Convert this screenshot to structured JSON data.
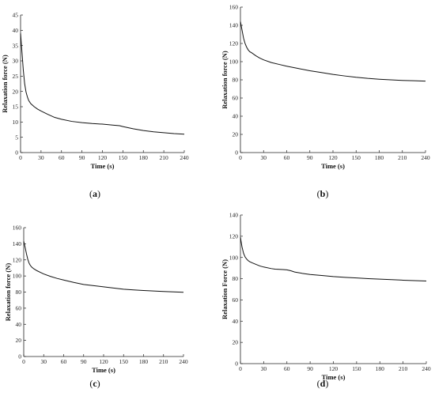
{
  "chart_data": [
    {
      "type": "line",
      "id": "a",
      "caption": "a",
      "xlabel": "Time (s)",
      "ylabel": "Relaxation force (N)",
      "xlim": [
        0,
        240
      ],
      "ylim": [
        0,
        45
      ],
      "xticks": [
        0,
        30,
        60,
        90,
        120,
        150,
        180,
        210,
        240
      ],
      "yticks": [
        0,
        5,
        10,
        15,
        20,
        25,
        30,
        35,
        40,
        45
      ],
      "grid": false,
      "series": [
        {
          "x": [
            0,
            2,
            4,
            6,
            8,
            10,
            12,
            15,
            20,
            25,
            30,
            40,
            50,
            60,
            75,
            90,
            105,
            120,
            135,
            145,
            150,
            165,
            180,
            195,
            210,
            225,
            240
          ],
          "y": [
            39,
            33,
            27,
            22.5,
            19.8,
            18.2,
            17,
            16,
            15,
            14.2,
            13.6,
            12.5,
            11.5,
            10.9,
            10.2,
            9.8,
            9.5,
            9.3,
            9.0,
            8.8,
            8.5,
            7.8,
            7.2,
            6.8,
            6.5,
            6.2,
            6.0
          ]
        }
      ]
    },
    {
      "type": "line",
      "id": "b",
      "caption": "b",
      "xlabel": "Time (s)",
      "ylabel": "Relaxation force (N)",
      "xlim": [
        0,
        240
      ],
      "ylim": [
        0,
        160
      ],
      "xticks": [
        0,
        30,
        60,
        90,
        120,
        150,
        180,
        210,
        240
      ],
      "yticks": [
        0,
        20,
        40,
        60,
        80,
        100,
        120,
        140,
        160
      ],
      "grid": false,
      "series": [
        {
          "x": [
            0,
            2,
            4,
            6,
            8,
            10,
            12,
            15,
            20,
            25,
            30,
            40,
            50,
            60,
            75,
            90,
            105,
            120,
            135,
            150,
            165,
            180,
            195,
            210,
            225,
            240
          ],
          "y": [
            144,
            135,
            126,
            120,
            116,
            113,
            111,
            109.5,
            106.5,
            104,
            102,
            99,
            97,
            95,
            92.5,
            90,
            88,
            86,
            84.3,
            82.8,
            81.6,
            80.7,
            80,
            79.4,
            79,
            78.6
          ]
        }
      ]
    },
    {
      "type": "line",
      "id": "c",
      "caption": "c",
      "xlabel": "Time (s)",
      "ylabel": "Relaxation force (N)",
      "xlim": [
        0,
        240
      ],
      "ylim": [
        0,
        160
      ],
      "xticks": [
        0,
        30,
        60,
        90,
        120,
        150,
        180,
        210,
        240
      ],
      "yticks": [
        0,
        20,
        40,
        60,
        80,
        100,
        120,
        140,
        160
      ],
      "grid": false,
      "series": [
        {
          "x": [
            0,
            2,
            4,
            6,
            8,
            10,
            12,
            15,
            20,
            25,
            30,
            40,
            50,
            60,
            75,
            90,
            105,
            120,
            135,
            150,
            165,
            180,
            195,
            210,
            225,
            240
          ],
          "y": [
            143,
            136,
            128,
            121,
            116,
            113,
            111,
            109,
            106.5,
            104.5,
            102.5,
            99.5,
            97,
            95,
            92,
            89.5,
            88,
            86.5,
            85,
            83.5,
            82.7,
            82,
            81.3,
            80.7,
            80.2,
            79.8
          ]
        }
      ]
    },
    {
      "type": "line",
      "id": "d",
      "caption": "d",
      "xlabel": "Time (s)",
      "ylabel": "Relaxation Force (N)",
      "xlim": [
        0,
        240
      ],
      "ylim": [
        0,
        140
      ],
      "xticks": [
        0,
        30,
        60,
        90,
        120,
        150,
        180,
        210,
        240
      ],
      "yticks": [
        0,
        20,
        40,
        60,
        80,
        100,
        120,
        140
      ],
      "grid": false,
      "series": [
        {
          "x": [
            0,
            2,
            4,
            6,
            8,
            10,
            12,
            15,
            20,
            25,
            30,
            40,
            45,
            50,
            55,
            60,
            65,
            70,
            80,
            90,
            105,
            120,
            135,
            150,
            165,
            180,
            195,
            210,
            225,
            240
          ],
          "y": [
            119,
            110,
            104,
            100.5,
            98.5,
            97,
            96,
            95,
            93.5,
            92,
            91,
            89.5,
            89,
            88.8,
            88.6,
            88.3,
            87.5,
            86.3,
            85,
            84,
            83,
            82,
            81.3,
            80.7,
            80.1,
            79.6,
            79.1,
            78.6,
            78.2,
            77.8
          ]
        }
      ]
    }
  ]
}
